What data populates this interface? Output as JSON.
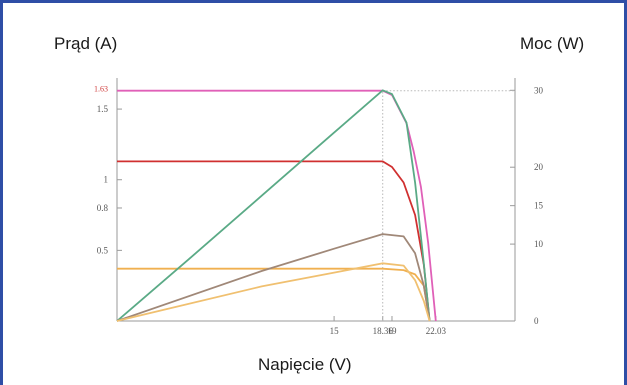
{
  "chart_data": {
    "type": "line",
    "ylabel": "Prąd (A)",
    "y2label": "Moc (W)",
    "xlabel": "Napięcie (V)",
    "xlim": [
      0,
      27.5
    ],
    "ylim": [
      0,
      1.72
    ],
    "y2lim": [
      0,
      31.6
    ],
    "x_ticks": [
      "15",
      "18.36",
      "19",
      "22.03"
    ],
    "y_ticks": [
      "0.5",
      "0.8",
      "1",
      "1.5"
    ],
    "y_highlight_tick": "1.63",
    "y2_ticks": [
      "0",
      "10",
      "15",
      "20",
      "30"
    ],
    "reference": {
      "x": 18.36,
      "y": 1.63,
      "y2": 30
    },
    "series": [
      {
        "axis": "left",
        "color": "#e060b8",
        "x": [
          0,
          18.36,
          19,
          20,
          20.5,
          21,
          21.5,
          22.03
        ],
        "y": [
          1.63,
          1.63,
          1.6,
          1.4,
          1.2,
          0.95,
          0.55,
          0
        ]
      },
      {
        "axis": "left",
        "color": "#d03030",
        "x": [
          0,
          15,
          18.36,
          19,
          19.8,
          20.6,
          21.2,
          21.6
        ],
        "y": [
          1.13,
          1.13,
          1.13,
          1.09,
          0.98,
          0.75,
          0.4,
          0
        ]
      },
      {
        "axis": "left",
        "color": "#f0b050",
        "x": [
          0,
          15,
          18.36,
          19.8,
          20.6,
          21.2,
          21.6
        ],
        "y": [
          0.37,
          0.37,
          0.37,
          0.36,
          0.33,
          0.25,
          0
        ]
      },
      {
        "axis": "right",
        "color": "#5aaa86",
        "x": [
          0,
          5,
          10,
          15,
          18.36,
          19,
          20,
          20.6,
          21.2,
          21.6
        ],
        "y": [
          0,
          8.1,
          16.3,
          24.5,
          30,
          29.5,
          25.8,
          18,
          7.5,
          0
        ]
      },
      {
        "axis": "right",
        "color": "#a08878",
        "x": [
          0,
          10,
          15,
          18.36,
          19.8,
          20.6,
          21.2,
          21.6
        ],
        "y": [
          0,
          6.5,
          9.4,
          11.3,
          11,
          8.8,
          4.6,
          0
        ]
      },
      {
        "axis": "right",
        "color": "#f0c070",
        "x": [
          0,
          10,
          15,
          18.36,
          19.8,
          20.6,
          21.2,
          21.6
        ],
        "y": [
          0,
          4.5,
          6.3,
          7.5,
          7.2,
          5.3,
          2.6,
          0
        ]
      }
    ]
  }
}
